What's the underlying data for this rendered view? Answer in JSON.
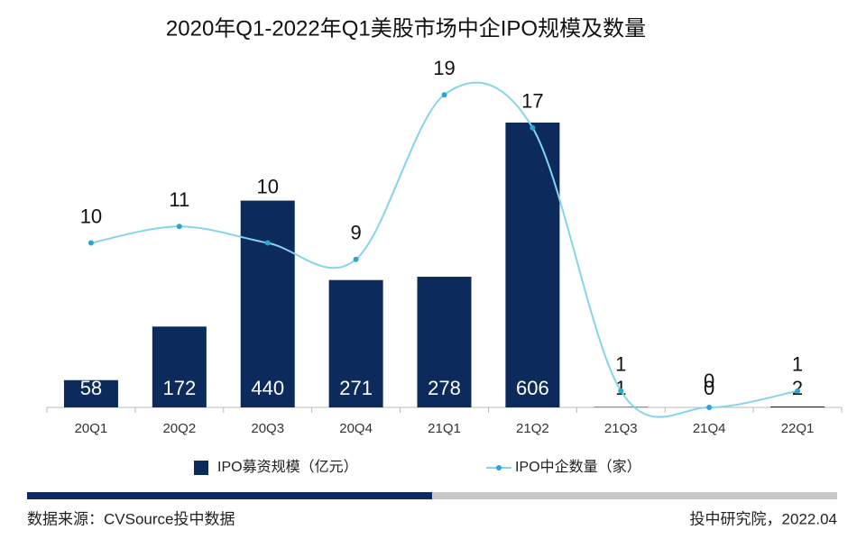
{
  "chart_data": {
    "type": "bar-line",
    "title": "2020年Q1-2022年Q1美股市场中企IPO规模及数量",
    "categories": [
      "20Q1",
      "20Q2",
      "20Q3",
      "20Q4",
      "21Q1",
      "21Q2",
      "21Q3",
      "21Q4",
      "22Q1"
    ],
    "series": [
      {
        "name": "IPO募资规模（亿元）",
        "type": "bar",
        "color": "#0d2a5c",
        "values": [
          58,
          172,
          440,
          271,
          278,
          606,
          1,
          0,
          2
        ]
      },
      {
        "name": "IPO中企数量（家）",
        "type": "line",
        "axis": "y2",
        "color": "#86d4ec",
        "marker_color": "#2aa6cf",
        "values": [
          10,
          11,
          10,
          9,
          19,
          17,
          1,
          0,
          1
        ]
      }
    ],
    "ylim": [
      0,
      700
    ],
    "y2lim": [
      0,
      20
    ],
    "source": "数据来源：CVSource投中数据",
    "credit": "投中研究院，2022.04"
  }
}
